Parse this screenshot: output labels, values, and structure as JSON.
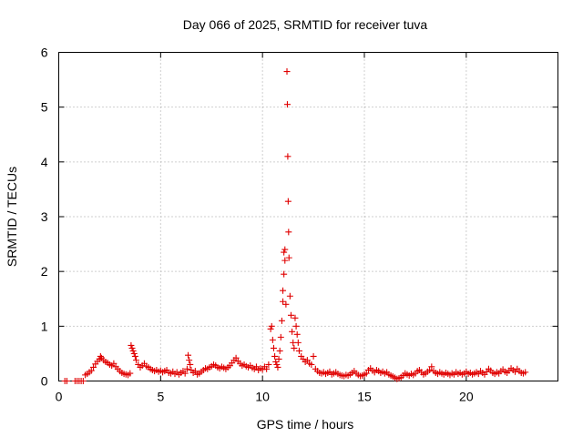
{
  "chart_data": {
    "type": "scatter",
    "title": "Day 066 of 2025, SRMTID for receiver tuva",
    "xlabel": "GPS time / hours",
    "ylabel": "SRMTID / TECUs",
    "xlim": [
      0,
      24.5
    ],
    "ylim": [
      0,
      6
    ],
    "x_ticks": [
      0,
      5,
      10,
      15,
      20
    ],
    "y_ticks": [
      0,
      1,
      2,
      3,
      4,
      5,
      6
    ],
    "x_tick_labels": [
      "0",
      "5",
      "10",
      "15",
      "20"
    ],
    "y_tick_labels": [
      "0",
      "1",
      "2",
      "3",
      "4",
      "5",
      "6"
    ],
    "grid": true,
    "marker": "plus",
    "color": "#e00000",
    "series": [
      {
        "name": "SRMTID",
        "points": [
          [
            0.3,
            0.0
          ],
          [
            0.4,
            0.0
          ],
          [
            0.8,
            0.0
          ],
          [
            0.9,
            0.0
          ],
          [
            1.0,
            0.0
          ],
          [
            1.1,
            0.0
          ],
          [
            1.2,
            0.0
          ],
          [
            1.3,
            0.11
          ],
          [
            1.4,
            0.13
          ],
          [
            1.5,
            0.16
          ],
          [
            1.6,
            0.19
          ],
          [
            1.7,
            0.25
          ],
          [
            1.8,
            0.31
          ],
          [
            1.9,
            0.36
          ],
          [
            2.0,
            0.4
          ],
          [
            2.05,
            0.45
          ],
          [
            2.1,
            0.42
          ],
          [
            2.2,
            0.38
          ],
          [
            2.3,
            0.35
          ],
          [
            2.4,
            0.33
          ],
          [
            2.5,
            0.3
          ],
          [
            2.6,
            0.28
          ],
          [
            2.7,
            0.32
          ],
          [
            2.8,
            0.26
          ],
          [
            2.9,
            0.22
          ],
          [
            3.0,
            0.18
          ],
          [
            3.1,
            0.15
          ],
          [
            3.2,
            0.13
          ],
          [
            3.3,
            0.12
          ],
          [
            3.4,
            0.11
          ],
          [
            3.5,
            0.14
          ],
          [
            3.55,
            0.65
          ],
          [
            3.6,
            0.6
          ],
          [
            3.65,
            0.55
          ],
          [
            3.7,
            0.5
          ],
          [
            3.75,
            0.45
          ],
          [
            3.8,
            0.38
          ],
          [
            3.9,
            0.3
          ],
          [
            4.0,
            0.25
          ],
          [
            4.1,
            0.28
          ],
          [
            4.2,
            0.32
          ],
          [
            4.3,
            0.27
          ],
          [
            4.4,
            0.25
          ],
          [
            4.5,
            0.22
          ],
          [
            4.6,
            0.2
          ],
          [
            4.7,
            0.18
          ],
          [
            4.8,
            0.2
          ],
          [
            4.9,
            0.17
          ],
          [
            5.0,
            0.19
          ],
          [
            5.1,
            0.16
          ],
          [
            5.2,
            0.18
          ],
          [
            5.3,
            0.2
          ],
          [
            5.4,
            0.15
          ],
          [
            5.5,
            0.14
          ],
          [
            5.6,
            0.17
          ],
          [
            5.7,
            0.13
          ],
          [
            5.8,
            0.16
          ],
          [
            5.9,
            0.12
          ],
          [
            6.0,
            0.15
          ],
          [
            6.1,
            0.18
          ],
          [
            6.2,
            0.14
          ],
          [
            6.3,
            0.22
          ],
          [
            6.35,
            0.47
          ],
          [
            6.4,
            0.38
          ],
          [
            6.45,
            0.3
          ],
          [
            6.5,
            0.2
          ],
          [
            6.6,
            0.15
          ],
          [
            6.7,
            0.18
          ],
          [
            6.8,
            0.12
          ],
          [
            6.9,
            0.14
          ],
          [
            7.0,
            0.17
          ],
          [
            7.1,
            0.2
          ],
          [
            7.2,
            0.23
          ],
          [
            7.3,
            0.22
          ],
          [
            7.4,
            0.25
          ],
          [
            7.5,
            0.27
          ],
          [
            7.6,
            0.3
          ],
          [
            7.7,
            0.28
          ],
          [
            7.8,
            0.25
          ],
          [
            7.9,
            0.23
          ],
          [
            8.0,
            0.26
          ],
          [
            8.1,
            0.24
          ],
          [
            8.2,
            0.22
          ],
          [
            8.3,
            0.25
          ],
          [
            8.4,
            0.28
          ],
          [
            8.5,
            0.33
          ],
          [
            8.6,
            0.38
          ],
          [
            8.7,
            0.42
          ],
          [
            8.8,
            0.36
          ],
          [
            8.9,
            0.32
          ],
          [
            9.0,
            0.28
          ],
          [
            9.1,
            0.3
          ],
          [
            9.2,
            0.27
          ],
          [
            9.3,
            0.25
          ],
          [
            9.4,
            0.28
          ],
          [
            9.5,
            0.24
          ],
          [
            9.6,
            0.22
          ],
          [
            9.7,
            0.26
          ],
          [
            9.8,
            0.2
          ],
          [
            9.9,
            0.23
          ],
          [
            10.0,
            0.21
          ],
          [
            10.1,
            0.26
          ],
          [
            10.2,
            0.22
          ],
          [
            10.3,
            0.3
          ],
          [
            10.4,
            0.95
          ],
          [
            10.45,
            1.0
          ],
          [
            10.5,
            0.75
          ],
          [
            10.55,
            0.6
          ],
          [
            10.6,
            0.45
          ],
          [
            10.65,
            0.35
          ],
          [
            10.7,
            0.3
          ],
          [
            10.75,
            0.25
          ],
          [
            10.8,
            0.4
          ],
          [
            10.85,
            0.55
          ],
          [
            10.9,
            0.8
          ],
          [
            10.95,
            1.1
          ],
          [
            11.0,
            1.45
          ],
          [
            11.0,
            1.65
          ],
          [
            11.05,
            1.95
          ],
          [
            11.05,
            2.35
          ],
          [
            11.1,
            2.4
          ],
          [
            11.1,
            2.2
          ],
          [
            11.15,
            1.4
          ],
          [
            11.2,
            5.65
          ],
          [
            11.22,
            5.05
          ],
          [
            11.24,
            4.1
          ],
          [
            11.26,
            3.28
          ],
          [
            11.28,
            2.72
          ],
          [
            11.3,
            2.25
          ],
          [
            11.35,
            1.55
          ],
          [
            11.4,
            1.2
          ],
          [
            11.45,
            0.9
          ],
          [
            11.5,
            0.7
          ],
          [
            11.55,
            0.6
          ],
          [
            11.6,
            1.15
          ],
          [
            11.65,
            1.0
          ],
          [
            11.7,
            0.85
          ],
          [
            11.75,
            0.7
          ],
          [
            11.8,
            0.55
          ],
          [
            11.9,
            0.45
          ],
          [
            12.0,
            0.4
          ],
          [
            12.1,
            0.35
          ],
          [
            12.2,
            0.38
          ],
          [
            12.3,
            0.32
          ],
          [
            12.4,
            0.3
          ],
          [
            12.5,
            0.45
          ],
          [
            12.6,
            0.22
          ],
          [
            12.7,
            0.18
          ],
          [
            12.8,
            0.15
          ],
          [
            12.9,
            0.14
          ],
          [
            13.0,
            0.16
          ],
          [
            13.1,
            0.13
          ],
          [
            13.2,
            0.15
          ],
          [
            13.3,
            0.17
          ],
          [
            13.4,
            0.12
          ],
          [
            13.5,
            0.14
          ],
          [
            13.6,
            0.16
          ],
          [
            13.7,
            0.13
          ],
          [
            13.8,
            0.11
          ],
          [
            13.9,
            0.1
          ],
          [
            14.0,
            0.09
          ],
          [
            14.1,
            0.11
          ],
          [
            14.2,
            0.1
          ],
          [
            14.3,
            0.12
          ],
          [
            14.4,
            0.15
          ],
          [
            14.5,
            0.18
          ],
          [
            14.6,
            0.14
          ],
          [
            14.7,
            0.11
          ],
          [
            14.8,
            0.09
          ],
          [
            14.9,
            0.1
          ],
          [
            15.0,
            0.12
          ],
          [
            15.1,
            0.14
          ],
          [
            15.2,
            0.2
          ],
          [
            15.3,
            0.23
          ],
          [
            15.4,
            0.19
          ],
          [
            15.5,
            0.16
          ],
          [
            15.6,
            0.2
          ],
          [
            15.7,
            0.18
          ],
          [
            15.8,
            0.15
          ],
          [
            15.9,
            0.17
          ],
          [
            16.0,
            0.14
          ],
          [
            16.1,
            0.16
          ],
          [
            16.2,
            0.12
          ],
          [
            16.3,
            0.1
          ],
          [
            16.4,
            0.08
          ],
          [
            16.5,
            0.06
          ],
          [
            16.6,
            0.04
          ],
          [
            16.7,
            0.05
          ],
          [
            16.8,
            0.07
          ],
          [
            16.9,
            0.1
          ],
          [
            17.0,
            0.14
          ],
          [
            17.1,
            0.12
          ],
          [
            17.2,
            0.1
          ],
          [
            17.3,
            0.13
          ],
          [
            17.4,
            0.11
          ],
          [
            17.5,
            0.14
          ],
          [
            17.6,
            0.18
          ],
          [
            17.7,
            0.2
          ],
          [
            17.8,
            0.16
          ],
          [
            17.9,
            0.12
          ],
          [
            18.0,
            0.14
          ],
          [
            18.1,
            0.17
          ],
          [
            18.2,
            0.2
          ],
          [
            18.3,
            0.26
          ],
          [
            18.4,
            0.18
          ],
          [
            18.5,
            0.15
          ],
          [
            18.6,
            0.13
          ],
          [
            18.7,
            0.16
          ],
          [
            18.8,
            0.14
          ],
          [
            18.9,
            0.12
          ],
          [
            19.0,
            0.15
          ],
          [
            19.1,
            0.13
          ],
          [
            19.2,
            0.11
          ],
          [
            19.3,
            0.14
          ],
          [
            19.4,
            0.12
          ],
          [
            19.5,
            0.16
          ],
          [
            19.6,
            0.13
          ],
          [
            19.7,
            0.15
          ],
          [
            19.8,
            0.12
          ],
          [
            19.9,
            0.14
          ],
          [
            20.0,
            0.17
          ],
          [
            20.1,
            0.13
          ],
          [
            20.2,
            0.15
          ],
          [
            20.3,
            0.12
          ],
          [
            20.4,
            0.14
          ],
          [
            20.5,
            0.16
          ],
          [
            20.6,
            0.13
          ],
          [
            20.7,
            0.18
          ],
          [
            20.8,
            0.15
          ],
          [
            20.9,
            0.12
          ],
          [
            21.0,
            0.17
          ],
          [
            21.1,
            0.22
          ],
          [
            21.2,
            0.19
          ],
          [
            21.3,
            0.15
          ],
          [
            21.4,
            0.13
          ],
          [
            21.5,
            0.16
          ],
          [
            21.6,
            0.14
          ],
          [
            21.7,
            0.18
          ],
          [
            21.8,
            0.21
          ],
          [
            21.9,
            0.17
          ],
          [
            22.0,
            0.15
          ],
          [
            22.1,
            0.19
          ],
          [
            22.2,
            0.23
          ],
          [
            22.3,
            0.2
          ],
          [
            22.4,
            0.17
          ],
          [
            22.5,
            0.22
          ],
          [
            22.6,
            0.18
          ],
          [
            22.7,
            0.15
          ],
          [
            22.8,
            0.14
          ],
          [
            22.9,
            0.16
          ]
        ]
      }
    ]
  }
}
